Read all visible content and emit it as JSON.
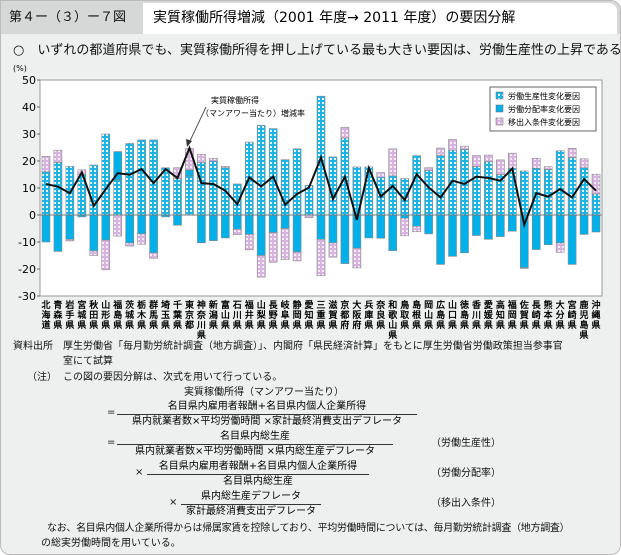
{
  "header": {
    "figure_no": "第４ー（３）ー７図",
    "title": "実質稼働所得増減（2001 年度→ 2011 年度）の要因分解"
  },
  "lead": "○　いずれの都道府県でも、実質稼働所得を押し上げている最も大きい要因は、労働生産性の上昇である。",
  "chart_data": {
    "type": "bar",
    "stacked": true,
    "yunit": "(%)",
    "ylim": [
      -30,
      50
    ],
    "yticks": [
      50,
      40,
      30,
      20,
      10,
      0,
      -10,
      -20,
      -30
    ],
    "legend_position": "top-right",
    "annotation": "実質稼働所得\n（マンアワー当たり）増減率",
    "colors": {
      "productivity": "#19b4e6",
      "distribution": "#00b0e8",
      "migration": "#d7b4df",
      "line": "#111111"
    },
    "categories": [
      "北海道",
      "青森県",
      "岩手県",
      "宮城県",
      "秋田県",
      "山形県",
      "福島県",
      "茨城県",
      "栃木県",
      "群馬県",
      "埼玉県",
      "千葉県",
      "東京都",
      "神奈川県",
      "新潟県",
      "富山県",
      "石川県",
      "福井県",
      "山梨県",
      "長野県",
      "岐阜県",
      "静岡県",
      "愛知県",
      "三重県",
      "滋賀県",
      "京都府",
      "大阪府",
      "兵庫県",
      "奈良県",
      "和歌山県",
      "鳥取県",
      "島根県",
      "岡山県",
      "広島県",
      "山口県",
      "徳島県",
      "香川県",
      "愛媛県",
      "高知県",
      "福岡県",
      "佐賀県",
      "長崎県",
      "熊本県",
      "大分県",
      "宮崎県",
      "鹿児島県",
      "沖縄県"
    ],
    "series": [
      {
        "name": "労働生産性変化要因",
        "type": "bar",
        "values": [
          16,
          19.5,
          18,
          15,
          18.5,
          30,
          13,
          26.5,
          27.8,
          27.8,
          17.5,
          13.5,
          14.5,
          19.5,
          20,
          17.5,
          11.5,
          27,
          33.2,
          32,
          20.5,
          24.5,
          11,
          44,
          21.5,
          28.5,
          17.8,
          17.8,
          14,
          14.5,
          13.5,
          22,
          16.5,
          22,
          24,
          24.3,
          18,
          19.8,
          15,
          17.3,
          16.3,
          17.3,
          16.9,
          23.8,
          21.3,
          17.5,
          7.8
        ]
      },
      {
        "name": "労働分配率変化要因",
        "type": "bar",
        "values": [
          -10,
          -13.5,
          -9,
          -0.7,
          -13.3,
          -9.3,
          10.5,
          -10.3,
          -7,
          -14,
          -0.7,
          -3.8,
          2.2,
          -10.3,
          -9.5,
          -8.5,
          -5.3,
          -7.2,
          -15,
          -6.5,
          -5,
          -13.7,
          0,
          -9,
          -10.3,
          -18,
          -12.3,
          -8.5,
          -8.6,
          -13.2,
          -1.2,
          -4.2,
          -7,
          -18.3,
          -15.3,
          -14,
          -7.6,
          -9,
          -8,
          -6,
          -19.5,
          -12.8,
          -11,
          -10.3,
          -18.3,
          -7.2,
          -6.3
        ]
      },
      {
        "name": "移出入条件変化要因",
        "type": "bar",
        "values": [
          5.7,
          4.5,
          -0.6,
          1.7,
          -1.7,
          -11,
          -7.8,
          -1.2,
          -3.8,
          -2,
          0,
          4,
          7.9,
          3,
          1,
          0.5,
          -2,
          -5.7,
          -8,
          -11,
          -11.5,
          -3.3,
          -1,
          -13.5,
          -5.3,
          4,
          -7.3,
          0,
          1.7,
          10,
          -6.5,
          -2,
          1,
          2.8,
          4,
          1.2,
          4,
          2.4,
          5.4,
          5.6,
          -0.3,
          3.7,
          1,
          -3.5,
          3.4,
          3.3,
          7.3
        ]
      },
      {
        "name": "実質稼働所得（マンアワー当たり）増減率",
        "type": "line",
        "values": [
          11.5,
          10.5,
          8.1,
          15.8,
          3.4,
          9.6,
          15.5,
          14.9,
          17,
          11.8,
          17,
          13.7,
          24.8,
          11.8,
          11.5,
          9,
          4,
          13.9,
          10.6,
          14.2,
          3.8,
          7.8,
          10.2,
          21.3,
          5.9,
          14.2,
          -1.8,
          17.4,
          6.8,
          10.8,
          5.5,
          15.1,
          10.2,
          6.5,
          12.7,
          11.5,
          14.2,
          13.7,
          12.7,
          17.2,
          -3.6,
          8.1,
          6.8,
          9.6,
          6.5,
          13.3,
          9
        ]
      }
    ]
  },
  "notes": {
    "source_label": "資料出所",
    "source_text": "厚生労働省「毎月勤労統計調査（地方調査）」、内閣府「県民経済計算」をもとに厚生労働省労働政策担当参事官",
    "source_text2": "室にて試算",
    "note_label": "（注）",
    "note_text": "この図の要因分解は、次式を用いて行っている。",
    "f_head": "実質稼働所得（マンアワー当たり）",
    "f1_num": "名目県内雇用者報酬+名目県内個人企業所得",
    "f1_den": "県内就業者数×平均労働時間 ×家計最終消費支出デフレータ",
    "f2_num": "名目県内総生産",
    "f2_den": "県内就業者数×平均労働時間 ×県内総生産デフレータ",
    "f2_label": "（労働生産性）",
    "f3_num": "名目県内雇用者報酬+名目県内個人企業所得",
    "f3_den": "名目県内総生産",
    "f3_label": "（労働分配率）",
    "f4_num": "県内総生産デフレータ",
    "f4_den": "家計最終消費支出デフレータ",
    "f4_label": "（移出入条件）",
    "eq": "=",
    "times": "×",
    "footer1": "なお、名目県内個人企業所得からは帰属家賃を控除しており、平均労働時間については、毎月勤労統計調査（地方調査）",
    "footer2": "の総実労働時間を用いている。"
  }
}
